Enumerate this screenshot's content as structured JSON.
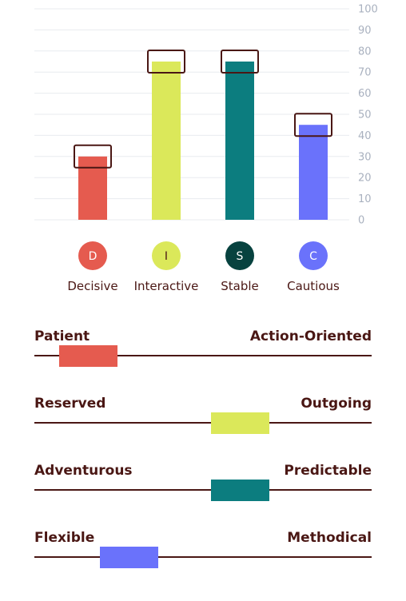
{
  "chart_data": {
    "type": "bar",
    "categories": [
      "Decisive",
      "Interactive",
      "Stable",
      "Cautious"
    ],
    "letters": [
      "D",
      "I",
      "S",
      "C"
    ],
    "values": [
      30,
      75,
      75,
      45
    ],
    "colors": [
      "#e55b4f",
      "#dbe85a",
      "#0c7d7f",
      "#6a72fb"
    ],
    "circle_colors": [
      "#e55b4f",
      "#dbe85a",
      "#07423f",
      "#6a72fb"
    ],
    "letter_colors": [
      "#ffffff",
      "#4a1714",
      "#ffffff",
      "#ffffff"
    ],
    "ylim": [
      0,
      100
    ],
    "yticks": [
      0,
      10,
      20,
      30,
      40,
      50,
      60,
      70,
      80,
      90,
      100
    ],
    "grid": true,
    "marker_color": "#4a1714",
    "xlabel": "",
    "ylabel": ""
  },
  "scales": [
    {
      "left": "Patient",
      "right": "Action-Oriented",
      "position": 0.16,
      "color": "#e55b4f"
    },
    {
      "left": "Reserved",
      "right": "Outgoing",
      "position": 0.61,
      "color": "#dbe85a"
    },
    {
      "left": "Adventurous",
      "right": "Predictable",
      "position": 0.61,
      "color": "#0c7d7f"
    },
    {
      "left": "Flexible",
      "right": "Methodical",
      "position": 0.28,
      "color": "#6a72fb"
    }
  ]
}
